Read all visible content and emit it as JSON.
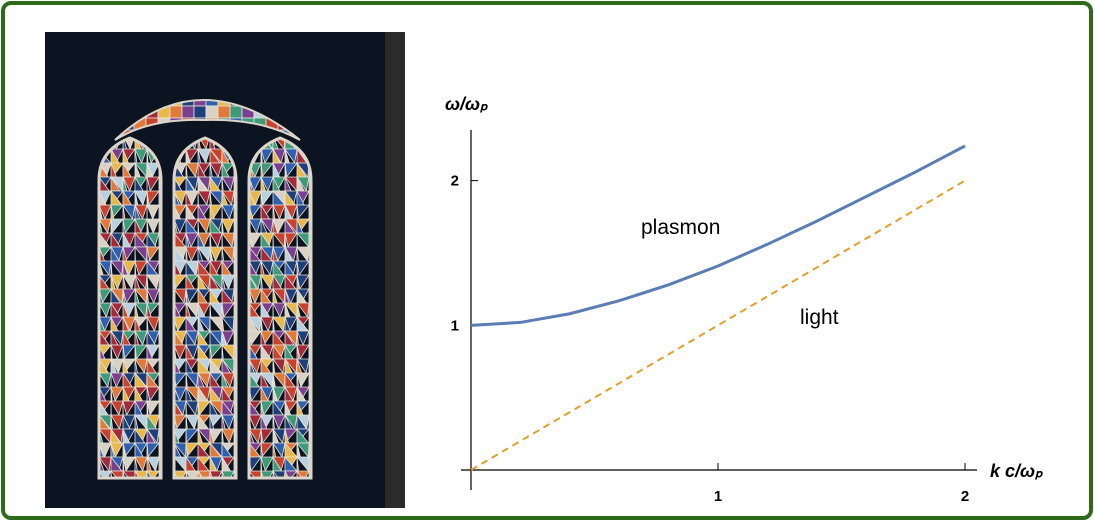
{
  "chart_data": {
    "type": "line",
    "x_label": "k c/ωₚ",
    "y_label": "ω/ωₚ",
    "x": [
      0,
      0.2,
      0.4,
      0.6,
      0.8,
      1.0,
      1.2,
      1.4,
      1.6,
      1.8,
      2.0
    ],
    "series": [
      {
        "name": "plasmon",
        "color": "#5b7db3",
        "dashed": false,
        "values": [
          1.0,
          1.02,
          1.08,
          1.17,
          1.28,
          1.41,
          1.56,
          1.72,
          1.89,
          2.06,
          2.24
        ]
      },
      {
        "name": "light",
        "color": "#e0a02c",
        "dashed": true,
        "values": [
          0,
          0.2,
          0.4,
          0.6,
          0.8,
          1.0,
          1.2,
          1.4,
          1.6,
          1.8,
          2.0
        ]
      }
    ],
    "xlim": [
      0,
      2
    ],
    "ylim": [
      0,
      2.35
    ],
    "xticks": [
      1,
      2
    ],
    "yticks": [
      1,
      2
    ],
    "annotations": [
      "plasmon",
      "light"
    ]
  }
}
